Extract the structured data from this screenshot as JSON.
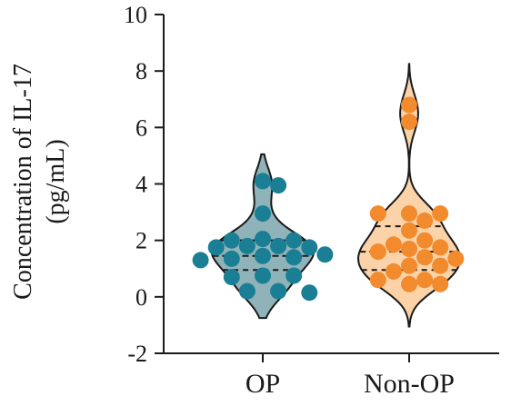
{
  "chart_data": {
    "type": "violin",
    "ylabel_lines": [
      "Concentration of IL-17",
      "(pg/mL)"
    ],
    "ylim": [
      -2,
      10
    ],
    "yticks": [
      -2,
      0,
      2,
      4,
      6,
      8,
      10
    ],
    "ytick_labels": [
      "-2",
      "0",
      "2",
      "4",
      "6",
      "8",
      "10"
    ],
    "categories": [
      "OP",
      "Non-OP"
    ],
    "series": [
      {
        "category": "OP",
        "fill": "#8fb3b8",
        "point_color": "#1a7f94",
        "quartiles": [
          0.95,
          1.45,
          2.0
        ],
        "extent": [
          -0.75,
          5.05
        ],
        "points": [
          4.1,
          3.95,
          2.95,
          2.05,
          2.0,
          2.0,
          1.8,
          1.75,
          1.8,
          1.75,
          1.5,
          1.45,
          1.35,
          1.4,
          1.3,
          0.75,
          0.7,
          0.75,
          0.2,
          0.15,
          0.2
        ]
      },
      {
        "category": "Non-OP",
        "fill": "#fcd3a8",
        "point_color": "#f28a2e",
        "quartiles": [
          0.95,
          1.6,
          2.5
        ],
        "extent": [
          -1.05,
          8.25
        ],
        "points": [
          6.8,
          6.2,
          2.95,
          2.95,
          2.95,
          2.7,
          2.35,
          2.0,
          1.85,
          1.75,
          1.7,
          1.6,
          1.4,
          1.35,
          1.1,
          1.1,
          0.9,
          0.6,
          0.45,
          0.45,
          0.6
        ]
      }
    ]
  }
}
